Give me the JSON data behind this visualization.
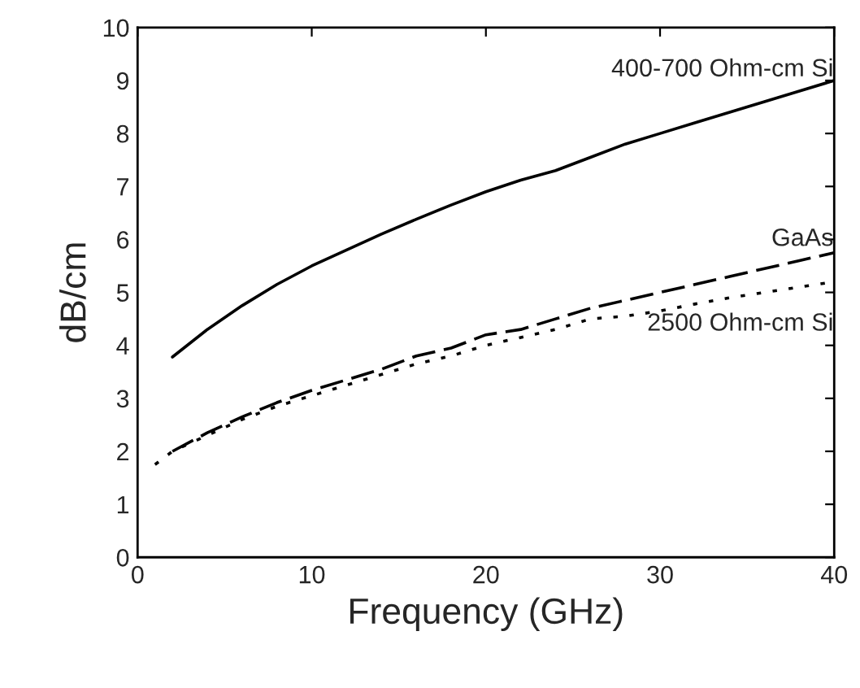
{
  "chart_data": {
    "type": "line",
    "xlabel": "Frequency (GHz)",
    "ylabel": "dB/cm",
    "x": [
      2,
      4,
      6,
      8,
      10,
      12,
      14,
      16,
      18,
      20,
      22,
      24,
      26,
      28,
      30,
      32,
      34,
      36,
      38,
      40
    ],
    "series": [
      {
        "color": "#000000",
        "line_style": "solid",
        "values": [
          3.78,
          4.3,
          4.75,
          5.15,
          5.5,
          5.8,
          6.1,
          6.38,
          6.65,
          6.9,
          7.12,
          7.3,
          7.55,
          7.8,
          8.0,
          8.2,
          8.4,
          8.6,
          8.8,
          9.0
        ]
      },
      {
        "color": "#000000",
        "line_style": "dashed",
        "values": [
          2.0,
          2.35,
          2.65,
          2.92,
          3.15,
          3.35,
          3.55,
          3.8,
          3.95,
          4.2,
          4.3,
          4.5,
          4.7,
          4.85,
          5.0,
          5.15,
          5.3,
          5.45,
          5.6,
          5.75
        ]
      },
      {
        "color": "#000000",
        "line_style": "dotted",
        "x": [
          1,
          2,
          4,
          6,
          8,
          10,
          12,
          14,
          16,
          18,
          20,
          22,
          24,
          26,
          28,
          30,
          32,
          34,
          36,
          38,
          40
        ],
        "values": [
          1.75,
          2.0,
          2.3,
          2.6,
          2.85,
          3.05,
          3.25,
          3.45,
          3.65,
          3.8,
          4.0,
          4.15,
          4.3,
          4.5,
          4.55,
          4.65,
          4.78,
          4.9,
          5.0,
          5.1,
          5.2
        ]
      }
    ],
    "annotations": [
      "400-700 Ohm-cm Si",
      "GaAs",
      "2500 Ohm-cm Si"
    ],
    "legend": false,
    "xlim": [
      0,
      40
    ],
    "ylim": [
      0,
      10
    ],
    "xticks": [
      0,
      10,
      20,
      30,
      40
    ],
    "yticks": [
      0,
      1,
      2,
      3,
      4,
      5,
      6,
      7,
      8,
      9,
      10
    ],
    "grid": false,
    "marker": "none"
  }
}
